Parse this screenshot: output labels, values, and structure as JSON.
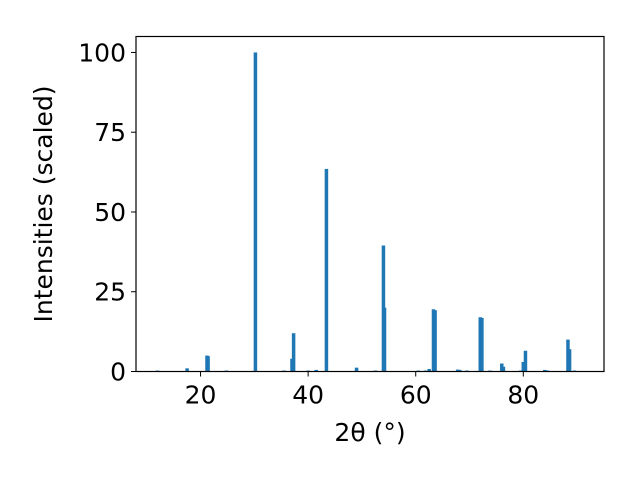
{
  "chart_data": {
    "type": "bar",
    "title": "",
    "xlabel": "2θ (°)",
    "ylabel": "Intensities (scaled)",
    "xlim": [
      8,
      95
    ],
    "ylim": [
      0,
      105
    ],
    "xticks": [
      20,
      40,
      60,
      80
    ],
    "yticks": [
      0,
      25,
      50,
      75,
      100
    ],
    "grid": false,
    "legend": "none",
    "bar_color": "#1f77b4",
    "x": [
      12.0,
      17.5,
      21.2,
      21.4,
      24.8,
      30.2,
      35.5,
      37.0,
      37.3,
      40.0,
      41.5,
      43.4,
      49.0,
      52.5,
      54.0,
      54.2,
      60.5,
      61.8,
      62.5,
      63.3,
      63.6,
      67.8,
      68.2,
      69.5,
      72.0,
      72.3,
      73.8,
      76.0,
      76.3,
      79.5,
      80.0,
      80.4,
      84.0,
      84.5,
      88.3,
      88.6,
      89.5
    ],
    "values": [
      0.3,
      1.0,
      5.0,
      4.8,
      0.3,
      100.0,
      0.3,
      4.0,
      12.0,
      0.3,
      0.5,
      63.5,
      1.2,
      0.3,
      39.5,
      20.0,
      0.3,
      0.3,
      0.8,
      19.5,
      19.2,
      0.6,
      0.5,
      0.3,
      17.0,
      16.8,
      0.3,
      2.5,
      1.5,
      0.3,
      3.0,
      6.5,
      0.5,
      0.3,
      10.0,
      7.0,
      0.3
    ]
  }
}
